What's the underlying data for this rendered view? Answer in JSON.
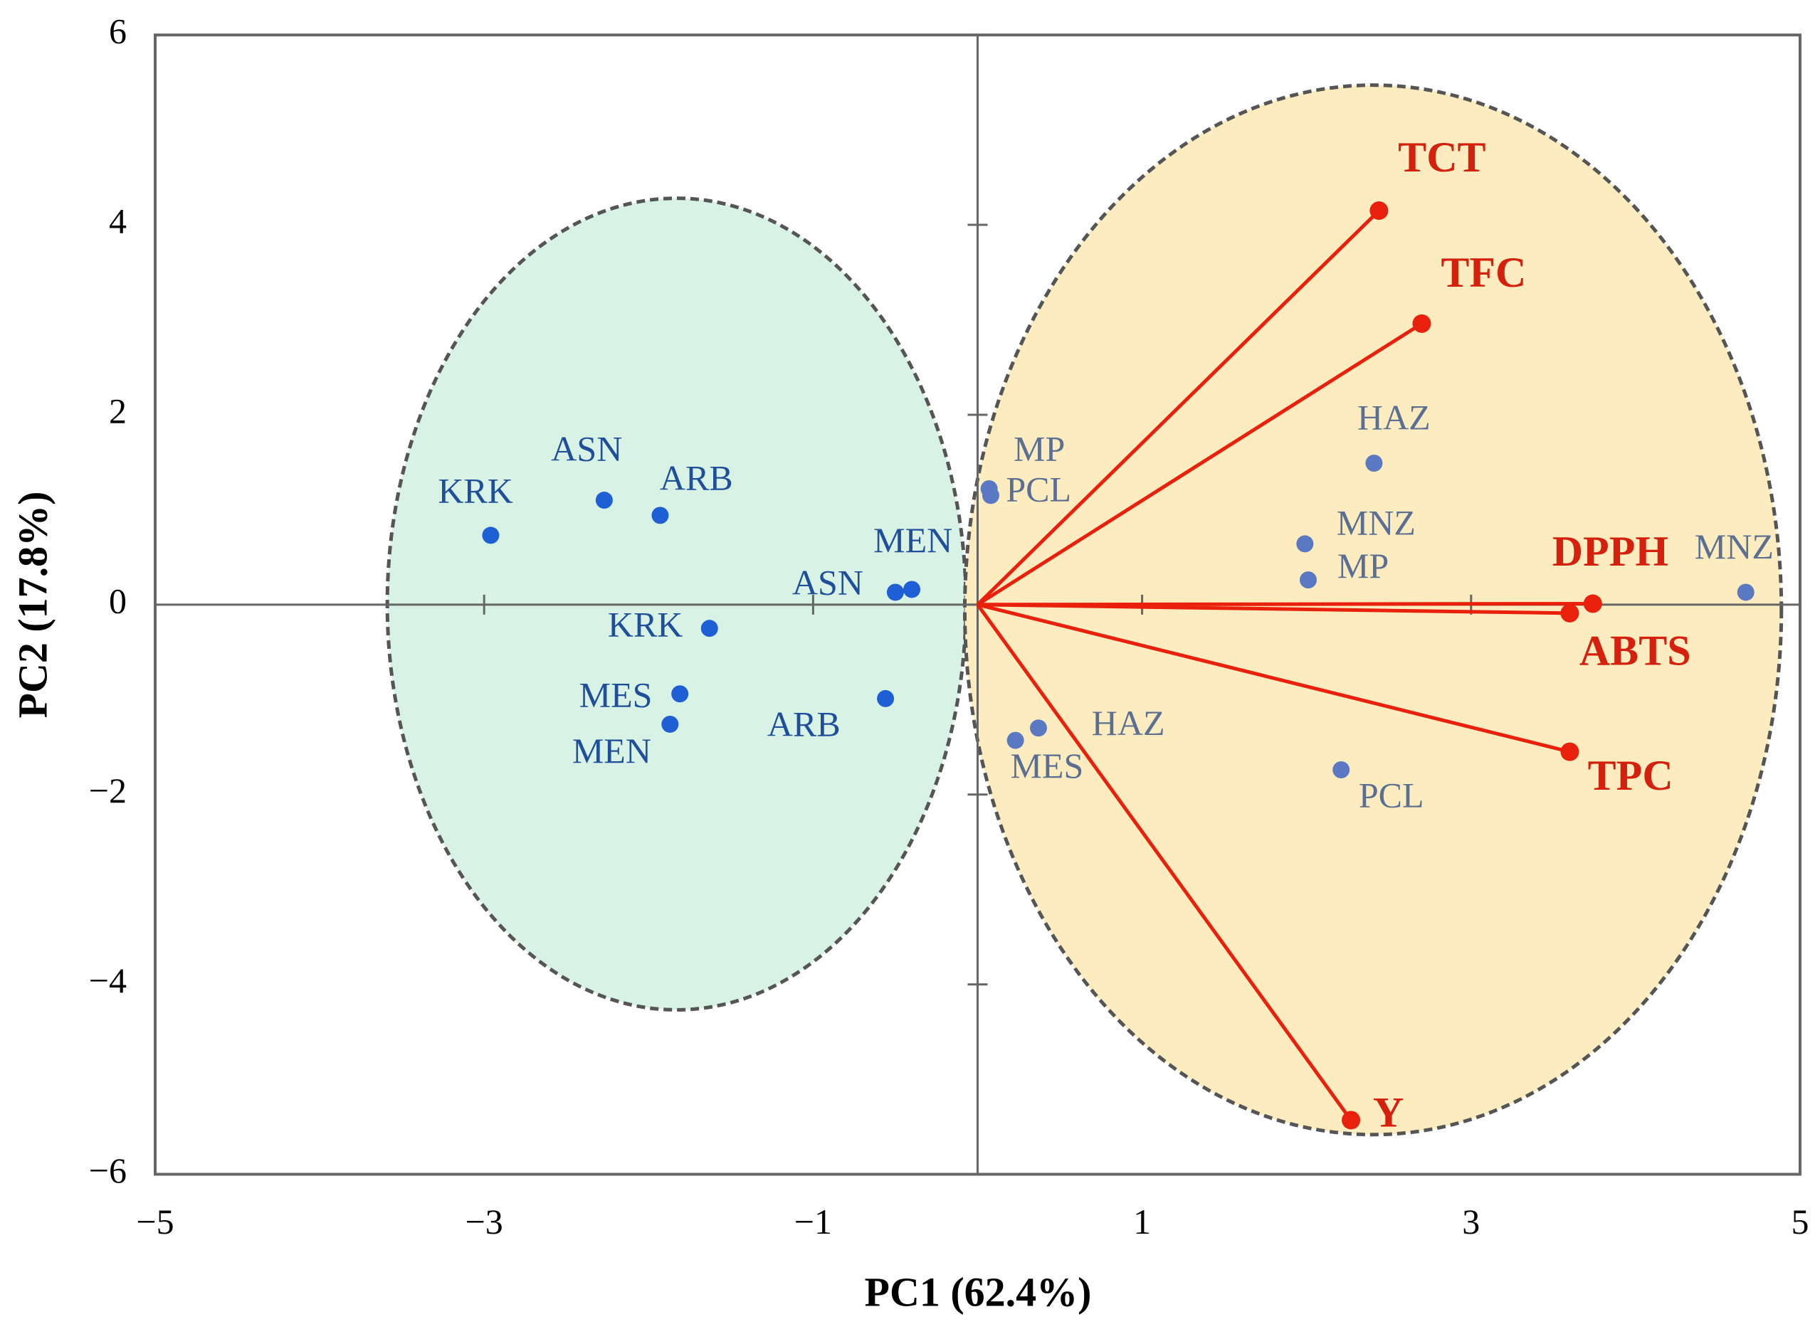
{
  "chart_data": {
    "type": "biplot",
    "xlabel": "PC1 (62.4%)",
    "ylabel": "PC2 (17.8%)",
    "xlim": [
      -5,
      5
    ],
    "ylim": [
      -6,
      6
    ],
    "xticks": [
      {
        "value": -5,
        "label": "−5"
      },
      {
        "value": -3,
        "label": "−3"
      },
      {
        "value": -1,
        "label": "−1"
      },
      1,
      3,
      5
    ],
    "yticks": [
      6,
      4,
      2,
      0,
      {
        "value": -2,
        "label": "−2"
      },
      {
        "value": -4,
        "label": "−4"
      },
      {
        "value": -6,
        "label": "−6"
      }
    ],
    "series": [
      {
        "kind": "scores",
        "color": "#1f5fd6",
        "label_color": "#1f4f9a",
        "labels": [
          "KRK",
          "ASN",
          "ARB",
          "ASN",
          "MEN",
          "KRK",
          "MES",
          "MEN",
          "ARB"
        ],
        "x": [
          -2.96,
          -2.27,
          -1.93,
          -0.5,
          -0.4,
          -1.63,
          -1.81,
          -1.87,
          -0.56
        ],
        "y": [
          0.73,
          1.1,
          0.94,
          0.13,
          0.16,
          -0.25,
          -0.94,
          -1.26,
          -0.99
        ]
      },
      {
        "kind": "scores",
        "color": "#5b79c2",
        "label_color": "#5a6f92",
        "labels": [
          "MP",
          "PCL",
          "HAZ",
          "MNZ",
          "MP",
          "MNZ",
          "HAZ",
          "MES",
          "PCL"
        ],
        "x": [
          0.07,
          0.08,
          2.41,
          1.99,
          2.01,
          4.67,
          0.37,
          0.23,
          2.21
        ],
        "y": [
          1.22,
          1.15,
          1.49,
          0.64,
          0.26,
          0.13,
          -1.3,
          -1.43,
          -1.74
        ]
      },
      {
        "kind": "loadings",
        "color": "#e8200c",
        "label_color": "#d4200c",
        "labels": [
          "TCT",
          "TFC",
          "DPPH",
          "ABTS",
          "TPC",
          "Y"
        ],
        "x": [
          2.44,
          2.7,
          3.74,
          3.6,
          3.6,
          2.27
        ],
        "y": [
          4.15,
          2.96,
          0.01,
          -0.09,
          -1.55,
          -5.43
        ]
      }
    ]
  }
}
